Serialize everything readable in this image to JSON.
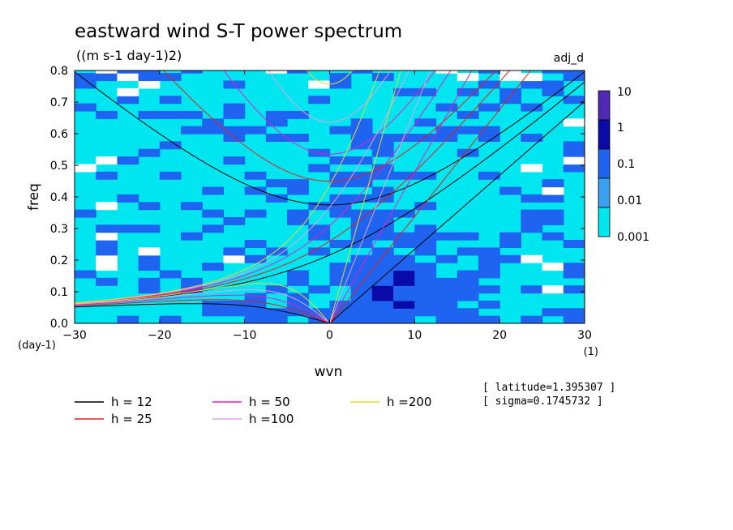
{
  "title": "eastward wind S-T power spectrum",
  "subtitle": "((m s-1 day-1)2)",
  "tag": "adj_d",
  "chart_data": {
    "type": "heatmap",
    "xlabel": "wvn",
    "ylabel": "freq",
    "x_unit": "(1)",
    "y_unit": "(day-1)",
    "xlim": [
      -30,
      30
    ],
    "ylim": [
      0,
      0.8
    ],
    "xticks": [
      -30,
      -20,
      -10,
      0,
      10,
      20,
      30
    ],
    "yticks": [
      0.0,
      0.1,
      0.2,
      0.3,
      0.4,
      0.5,
      0.6,
      0.7,
      0.8
    ],
    "colorbar": {
      "levels": [
        "10",
        "1",
        "0.1",
        "0.01",
        "0.001"
      ],
      "colors": [
        "#5028b4",
        "#0a0aa8",
        "#1e64f0",
        "#3ca0f0",
        "#00e6f0"
      ]
    },
    "series": [
      {
        "name": "h = 12",
        "color": "#000000",
        "h": 12
      },
      {
        "name": "h = 25",
        "color": "#e61e1e",
        "h": 25
      },
      {
        "name": "h = 50",
        "color": "#e61ec8",
        "h": 50
      },
      {
        "name": "h =100",
        "color": "#e6a0e6",
        "h": 100
      },
      {
        "name": "h =200",
        "color": "#e6dc32",
        "h": 200
      }
    ]
  },
  "annotations": {
    "latitude": "[ latitude=1.395307 ]",
    "sigma": "[ sigma=0.1745732 ]"
  }
}
